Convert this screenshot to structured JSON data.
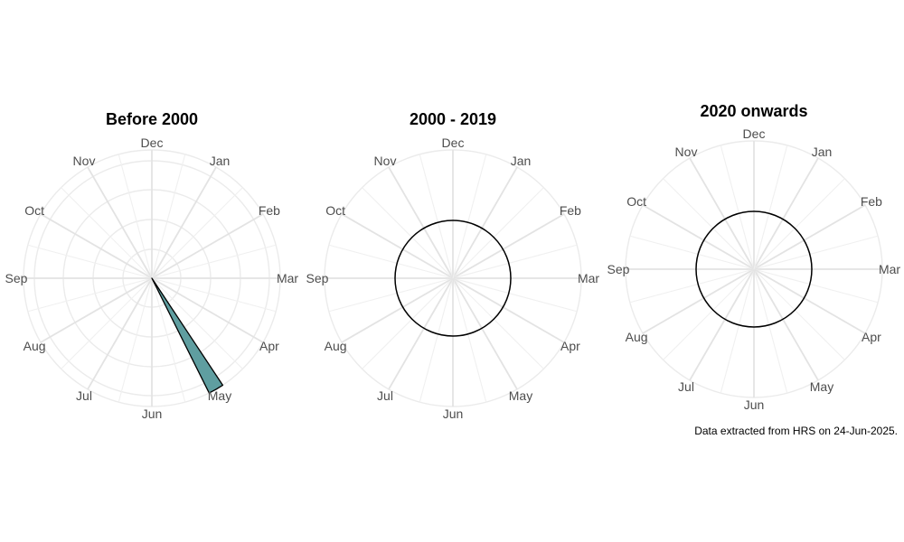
{
  "caption": "Data extracted from HRS on 24-Jun-2025.",
  "chart_data": [
    {
      "type": "polar-bar",
      "title": "Before 2000",
      "categories": [
        "Jan",
        "Feb",
        "Mar",
        "Apr",
        "May",
        "Jun",
        "Jul",
        "Aug",
        "Sep",
        "Oct",
        "Nov",
        "Dec"
      ],
      "values": [
        0,
        0,
        0,
        0,
        1,
        0,
        0,
        0,
        0,
        0,
        0,
        0
      ],
      "bar_color": "#5f9ea0",
      "grid": true,
      "reference_circle": false
    },
    {
      "type": "polar-bar",
      "title": "2000 - 2019",
      "categories": [
        "Jan",
        "Feb",
        "Mar",
        "Apr",
        "May",
        "Jun",
        "Jul",
        "Aug",
        "Sep",
        "Oct",
        "Nov",
        "Dec"
      ],
      "values": [
        0,
        0,
        0,
        0,
        0,
        0,
        0,
        0,
        0,
        0,
        0,
        0
      ],
      "bar_color": "#5f9ea0",
      "grid": true,
      "reference_circle": true
    },
    {
      "type": "polar-bar",
      "title": "2020 onwards",
      "categories": [
        "Jan",
        "Feb",
        "Mar",
        "Apr",
        "May",
        "Jun",
        "Jul",
        "Aug",
        "Sep",
        "Oct",
        "Nov",
        "Dec"
      ],
      "values": [
        0,
        0,
        0,
        0,
        0,
        0,
        0,
        0,
        0,
        0,
        0,
        0
      ],
      "bar_color": "#5f9ea0",
      "grid": true,
      "reference_circle": true
    }
  ]
}
